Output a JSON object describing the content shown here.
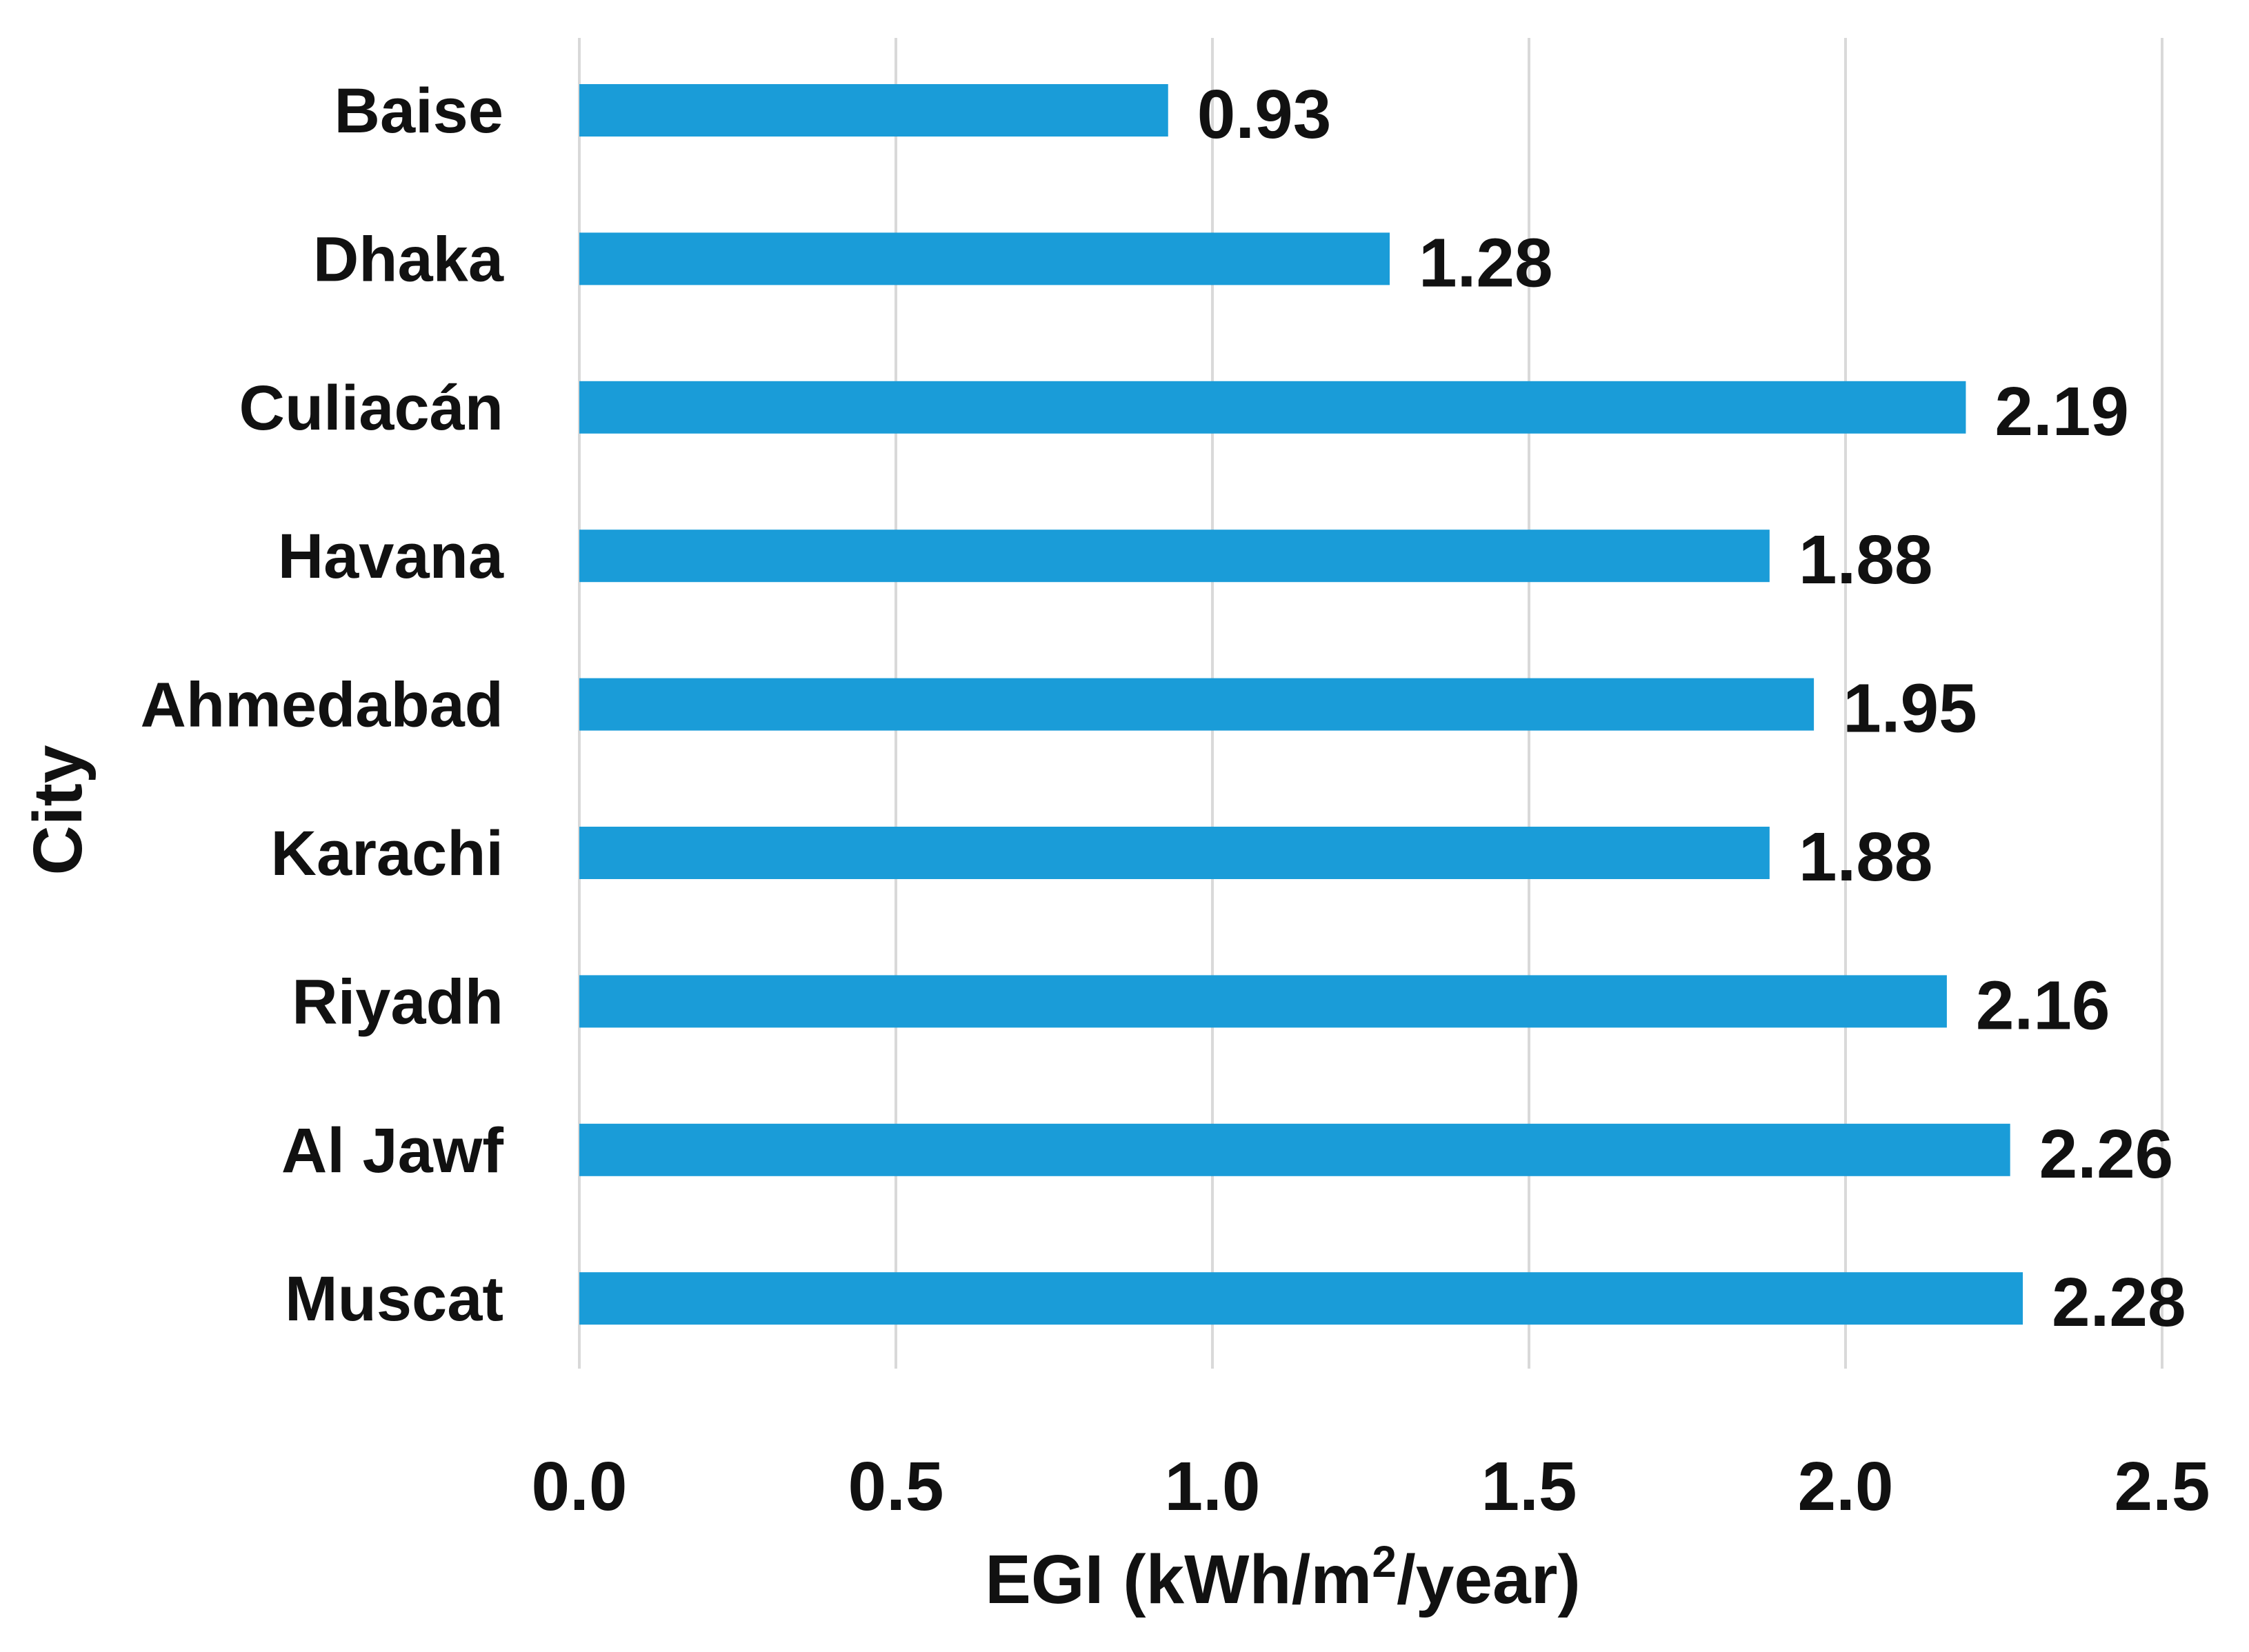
{
  "chart_data": {
    "type": "bar",
    "orientation": "horizontal",
    "title": "",
    "categories": [
      "Baise",
      "Dhaka",
      "Culiacán",
      "Havana",
      "Ahmedabad",
      "Karachi",
      "Riyadh",
      "Al Jawf",
      "Muscat"
    ],
    "values": [
      0.93,
      1.28,
      2.19,
      1.88,
      1.95,
      1.88,
      2.16,
      2.26,
      2.28
    ],
    "value_labels": [
      "0.93",
      "1.28",
      "2.19",
      "1.88",
      "1.95",
      "1.88",
      "2.16",
      "2.26",
      "2.28"
    ],
    "xlabel": "EGI (kWh/m²/year)",
    "xlabel_parts": {
      "before": "EGI (kWh/m",
      "sup": "2",
      "after": "/year)"
    },
    "ylabel": "City",
    "xlim": [
      0,
      2.5
    ],
    "xticks": [
      0.0,
      0.5,
      1.0,
      1.5,
      2.0,
      2.5
    ],
    "xtick_labels": [
      "0.0",
      "0.5",
      "1.0",
      "1.5",
      "2.0",
      "2.5"
    ],
    "grid": "vertical",
    "legend": "none",
    "bar_color": "#1a9cd8"
  }
}
